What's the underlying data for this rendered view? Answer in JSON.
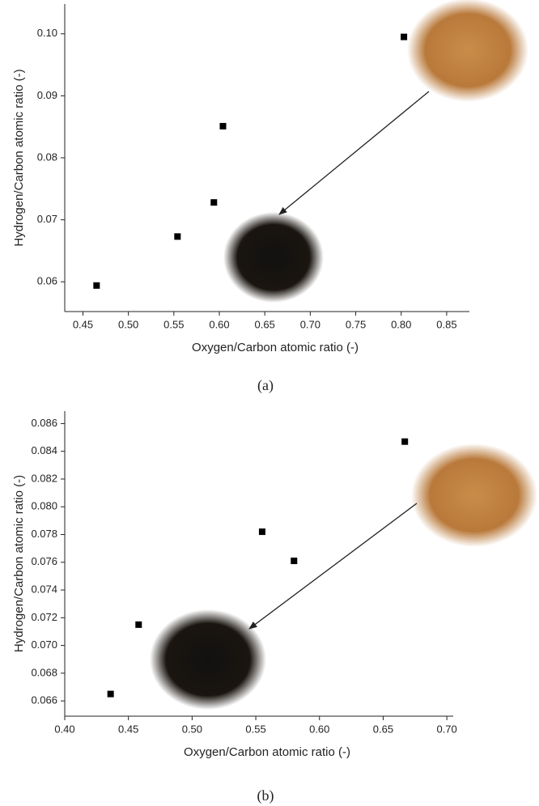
{
  "chart_data": [
    {
      "type": "scatter",
      "caption": "(a)",
      "x_label": "Oxygen/Carbon atomic ratio (-)",
      "y_label": "Hydrogen/Carbon atomic ratio (-)",
      "color": "#000000",
      "x": [
        0.465,
        0.554,
        0.594,
        0.604,
        0.803
      ],
      "values": [
        0.0594,
        0.0673,
        0.0728,
        0.0851,
        0.0995
      ],
      "xlim": [
        0.43,
        0.875
      ],
      "ylim": [
        0.0552,
        0.1048
      ],
      "xticks": [
        0.45,
        {
          "value": 0.5,
          "label": "0.50"
        },
        0.55,
        {
          "value": 0.6,
          "label": "0.60"
        },
        0.65,
        {
          "value": 0.7,
          "label": "0.70"
        },
        0.75,
        {
          "value": 0.8,
          "label": "0.80"
        },
        0.85
      ],
      "yticks": [
        0.06,
        0.07,
        0.08,
        0.09,
        {
          "value": 0.1,
          "label": "0.10"
        }
      ]
    },
    {
      "type": "scatter",
      "caption": "(b)",
      "x_label": "Oxygen/Carbon atomic ratio (-)",
      "y_label": "Hydrogen/Carbon atomic ratio (-)",
      "color": "#000000",
      "x": [
        0.436,
        0.458,
        0.555,
        0.58,
        0.667
      ],
      "values": [
        0.0665,
        0.0715,
        0.0782,
        0.0761,
        0.0847
      ],
      "xlim": [
        0.4,
        0.705
      ],
      "ylim": [
        0.0649,
        0.0869
      ],
      "xticks": [
        {
          "value": 0.4,
          "label": "0.40"
        },
        0.45,
        {
          "value": 0.5,
          "label": "0.50"
        },
        0.55,
        {
          "value": 0.6,
          "label": "0.60"
        },
        0.65,
        {
          "value": 0.7,
          "label": "0.70"
        }
      ],
      "yticks": [
        0.066,
        0.068,
        {
          "value": 0.07,
          "label": "0.070"
        },
        0.072,
        0.074,
        0.076,
        0.078,
        {
          "value": 0.08,
          "label": "0.080"
        },
        0.082,
        0.084,
        0.086
      ]
    }
  ]
}
